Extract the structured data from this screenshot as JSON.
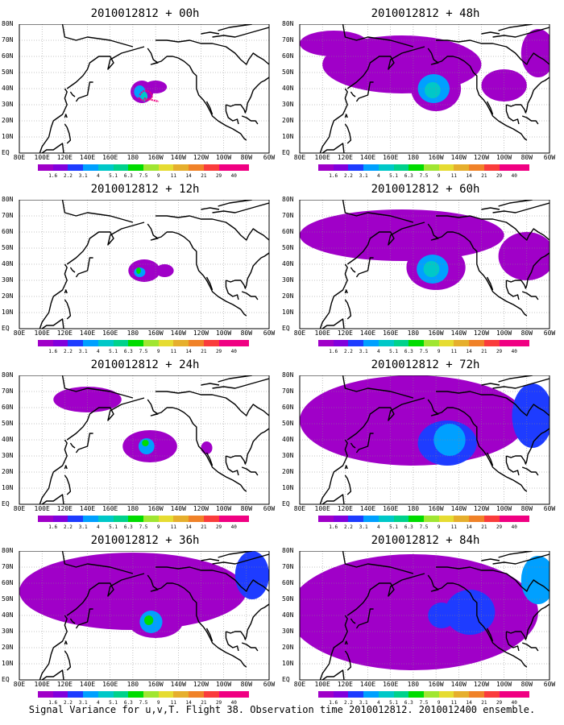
{
  "panels": [
    {
      "title": "2010012812 + 00h",
      "lead": "00h"
    },
    {
      "title": "2010012812 + 48h",
      "lead": "48h"
    },
    {
      "title": "2010012812 + 12h",
      "lead": "12h"
    },
    {
      "title": "2010012812 + 60h",
      "lead": "60h"
    },
    {
      "title": "2010012812 + 24h",
      "lead": "24h"
    },
    {
      "title": "2010012812 + 72h",
      "lead": "72h"
    },
    {
      "title": "2010012812 + 36h",
      "lead": "36h"
    },
    {
      "title": "2010012812 + 84h",
      "lead": "84h"
    }
  ],
  "lat_labels": [
    "80N",
    "70N",
    "60N",
    "50N",
    "40N",
    "30N",
    "20N",
    "10N",
    "EQ"
  ],
  "lon_labels": [
    "80E",
    "100E",
    "120E",
    "140E",
    "160E",
    "180",
    "160W",
    "140W",
    "120W",
    "100W",
    "80W",
    "60W"
  ],
  "colorbar": {
    "ticks": [
      "1.6",
      "2.2",
      "3.1",
      "4",
      "5.1",
      "6.3",
      "7.5",
      "9",
      "11",
      "14",
      "21",
      "29",
      "40"
    ],
    "colors": [
      "#a000c8",
      "#8200dc",
      "#1e3cff",
      "#00a0ff",
      "#00c8c8",
      "#00d28c",
      "#00dc00",
      "#a0e632",
      "#e6dc32",
      "#e6af2d",
      "#f08228",
      "#fa3c3c",
      "#f00082"
    ]
  },
  "caption": "Signal Variance for u,v,T. Flight 38. Observation time 2010012812. 2010012400 ensemble."
}
